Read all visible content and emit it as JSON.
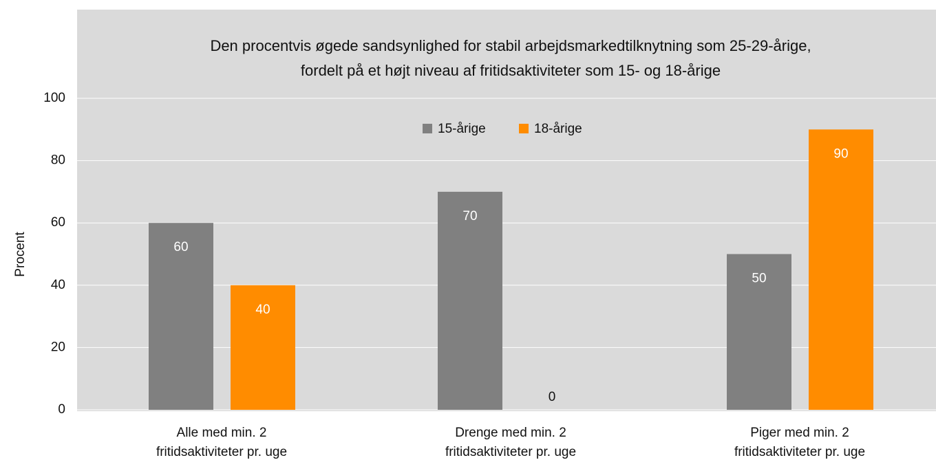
{
  "chart_data": {
    "type": "bar",
    "title": [
      "Den procentvis øgede sandsynlighed for stabil arbejdsmarkedtilknytning som 25-29-årige,",
      "fordelt på et højt niveau af fritidsaktiviteter som 15- og 18-årige"
    ],
    "ylabel": "Procent",
    "categories": [
      [
        "Alle med min. 2",
        "fritidsaktiviteter pr. uge"
      ],
      [
        "Drenge med min. 2",
        "fritidsaktiviteter pr. uge"
      ],
      [
        "Piger med min. 2",
        "fritidsaktiviteter pr. uge"
      ]
    ],
    "series": [
      {
        "name": "15-årige",
        "color": "#808080",
        "values": [
          60,
          70,
          50
        ]
      },
      {
        "name": "18-årige",
        "color": "#ff8c00",
        "values": [
          40,
          0,
          90
        ]
      }
    ],
    "ylim": [
      0,
      100
    ],
    "yticks": [
      0,
      20,
      40,
      60,
      80,
      100
    ],
    "grid": true,
    "legend": "top"
  }
}
